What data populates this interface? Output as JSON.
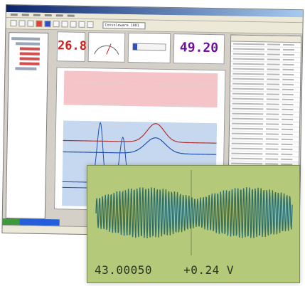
{
  "toolbar": {
    "selected_option": "Consoleware 1001"
  },
  "gauges": {
    "display_1": "26.8",
    "display_4": "49.20"
  },
  "chart": {
    "colors": {
      "band_top": "#f5c4c8",
      "band_mid": "#ffffff",
      "band_bottom": "#c6d8ef",
      "line_red": "#b03030",
      "line_blue": "#2050b0"
    }
  },
  "scope": {
    "readout_time": "43.00050",
    "readout_value": "+0.24 V",
    "colors": {
      "background": "#b4c97a",
      "trace": "#2e6e6a"
    }
  }
}
